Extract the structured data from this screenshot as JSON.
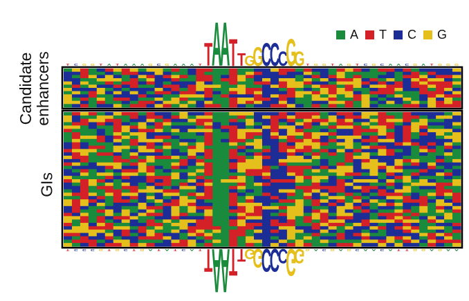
{
  "legend": [
    {
      "base": "A",
      "color": "#1a8a3c"
    },
    {
      "base": "T",
      "color": "#d42027"
    },
    {
      "base": "C",
      "color": "#1c2d96"
    },
    {
      "base": "G",
      "color": "#e5c01c"
    }
  ],
  "groups": {
    "enhancers": {
      "line1": "Candidate",
      "line2": "enhancers"
    },
    "gis": {
      "label": "GIs"
    }
  },
  "sequence_panel": {
    "bases": [
      "A",
      "T",
      "C",
      "G"
    ],
    "position_count": 48,
    "enhancer_row_count": 12,
    "gi_row_count": 40,
    "consensus": "TAATTGGCCCGG"
  },
  "logo_colors": {
    "A": "#1a8a3c",
    "T": "#d42027",
    "C": "#1c2d96",
    "G": "#e5c01c",
    "border": "#000000"
  }
}
